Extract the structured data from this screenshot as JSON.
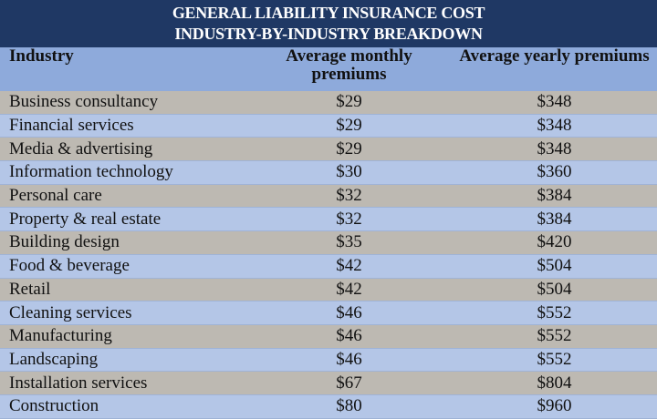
{
  "title_line1": "GENERAL LIABILITY INSURANCE COST",
  "title_line2": "INDUSTRY-BY-INDUSTRY BREAKDOWN",
  "colors": {
    "title_bg": "#1f3864",
    "header_bg": "#8eaadb",
    "row_gray": "#bdb9b2",
    "row_blue": "#b4c6e7"
  },
  "chart_data": {
    "type": "table",
    "columns": [
      "Industry",
      "Average monthly premiums",
      "Average yearly premiums"
    ],
    "rows": [
      [
        "Business consultancy",
        "$29",
        "$348"
      ],
      [
        "Financial services",
        "$29",
        "$348"
      ],
      [
        "Media & advertising",
        "$29",
        "$348"
      ],
      [
        "Information technology",
        "$30",
        "$360"
      ],
      [
        "Personal care",
        "$32",
        "$384"
      ],
      [
        "Property & real estate",
        "$32",
        "$384"
      ],
      [
        "Building design",
        "$35",
        "$420"
      ],
      [
        "Food & beverage",
        "$42",
        "$504"
      ],
      [
        "Retail",
        "$42",
        "$504"
      ],
      [
        "Cleaning services",
        "$46",
        "$552"
      ],
      [
        "Manufacturing",
        "$46",
        "$552"
      ],
      [
        "Landscaping",
        "$46",
        "$552"
      ],
      [
        "Installation services",
        "$67",
        "$804"
      ],
      [
        "Construction",
        "$80",
        "$960"
      ]
    ]
  }
}
